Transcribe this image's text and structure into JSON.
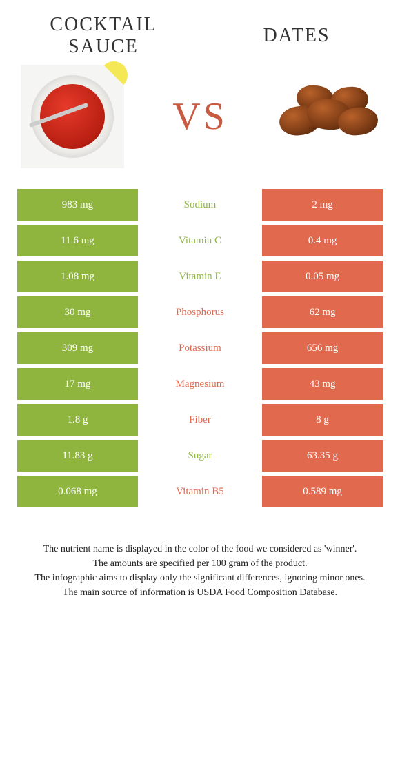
{
  "header": {
    "left_title": "Cocktail sauce",
    "right_title": "Dates",
    "vs_label": "VS"
  },
  "colors": {
    "left": "#8fb53f",
    "right": "#e0694e",
    "vs_text": "#c85a42"
  },
  "rows": [
    {
      "nutrient": "Sodium",
      "left": "983 mg",
      "right": "2 mg",
      "winner": "left"
    },
    {
      "nutrient": "Vitamin C",
      "left": "11.6 mg",
      "right": "0.4 mg",
      "winner": "left"
    },
    {
      "nutrient": "Vitamin E",
      "left": "1.08 mg",
      "right": "0.05 mg",
      "winner": "left"
    },
    {
      "nutrient": "Phosphorus",
      "left": "30 mg",
      "right": "62 mg",
      "winner": "right"
    },
    {
      "nutrient": "Potassium",
      "left": "309 mg",
      "right": "656 mg",
      "winner": "right"
    },
    {
      "nutrient": "Magnesium",
      "left": "17 mg",
      "right": "43 mg",
      "winner": "right"
    },
    {
      "nutrient": "Fiber",
      "left": "1.8 g",
      "right": "8 g",
      "winner": "right"
    },
    {
      "nutrient": "Sugar",
      "left": "11.83 g",
      "right": "63.35 g",
      "winner": "left"
    },
    {
      "nutrient": "Vitamin B5",
      "left": "0.068 mg",
      "right": "0.589 mg",
      "winner": "right"
    }
  ],
  "footer": {
    "line1": "The nutrient name is displayed in the color of the food we considered as 'winner'.",
    "line2": "The amounts are specified per 100 gram of the product.",
    "line3": "The infographic aims to display only the significant differences, ignoring minor ones.",
    "line4": "The main source of information is USDA Food Composition Database."
  }
}
